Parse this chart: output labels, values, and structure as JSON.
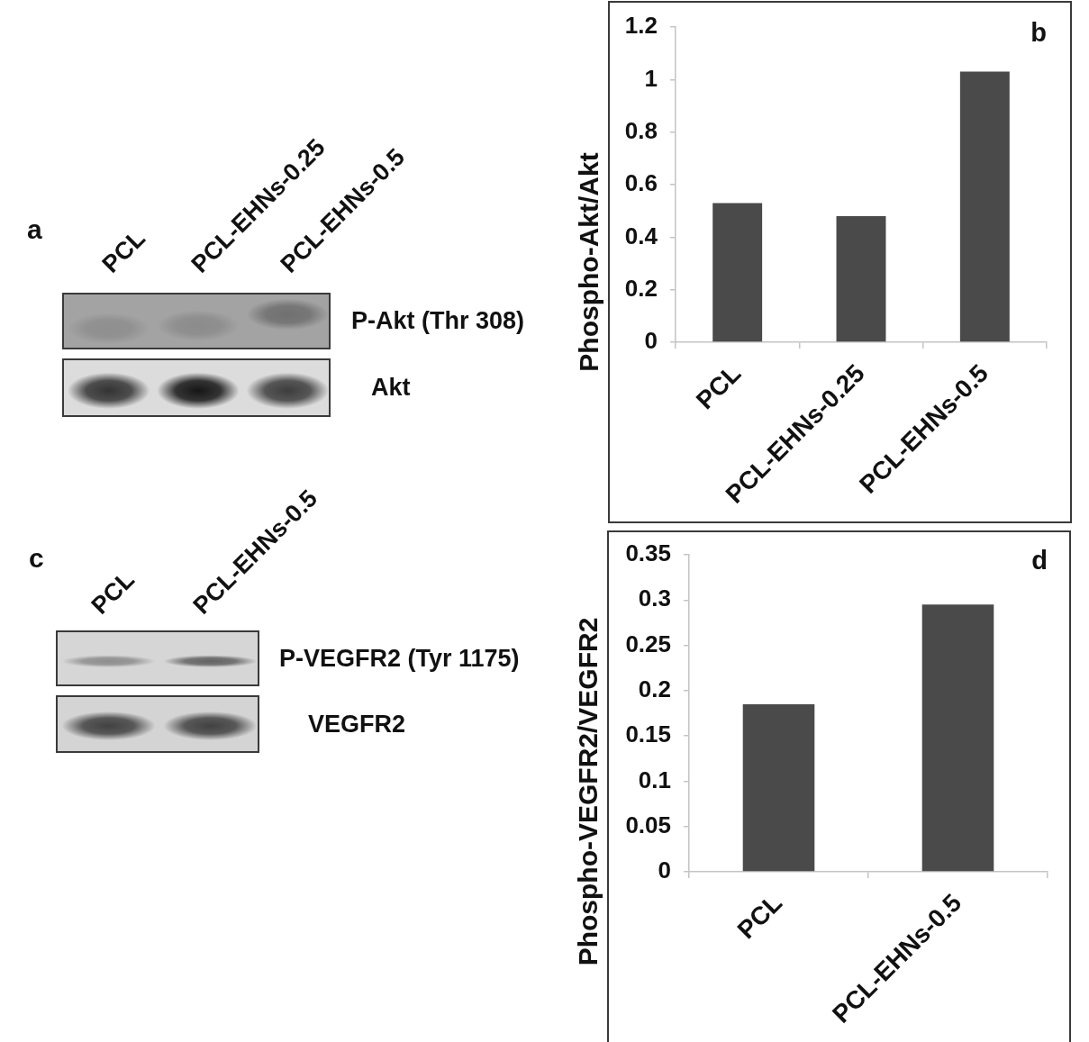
{
  "chart_data": [
    {
      "type": "other",
      "title": "a",
      "categories": [
        "PCL",
        "PCL-EHNs-0.25",
        "PCL-EHNs-0.5"
      ],
      "annotations": [
        "P-Akt (Thr 308)",
        "Akt"
      ]
    },
    {
      "type": "bar",
      "title": "b",
      "categories": [
        "PCL",
        "PCL-EHNs-0.25",
        "PCL-EHNs-0.5"
      ],
      "values": [
        0.53,
        0.48,
        1.03
      ],
      "color": "#4a4a4a",
      "ylabel": "Phospho-Akt/Akt",
      "ylim": [
        0,
        1.2
      ],
      "yticks": [
        0,
        0.2,
        0.4,
        0.6,
        0.8,
        1,
        1.2
      ]
    },
    {
      "type": "other",
      "title": "c",
      "categories": [
        "PCL",
        "PCL-EHNs-0.5"
      ],
      "annotations": [
        "P-VEGFR2 (Tyr 1175)",
        "VEGFR2"
      ]
    },
    {
      "type": "bar",
      "title": "d",
      "categories": [
        "PCL",
        "PCL-EHNs-0.5"
      ],
      "values": [
        0.185,
        0.295
      ],
      "color": "#4a4a4a",
      "ylabel": "Phospho-VEGFR2/VEGFR2",
      "ylim": [
        0,
        0.35
      ],
      "yticks": [
        0,
        0.05,
        0.1,
        0.15,
        0.2,
        0.25,
        0.3,
        0.35
      ]
    }
  ]
}
